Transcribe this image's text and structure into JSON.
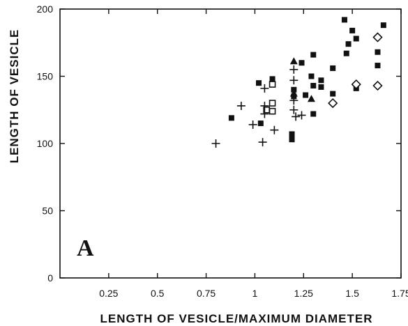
{
  "chart_data": {
    "type": "scatter",
    "title": "",
    "panel_label": "A",
    "xlabel": "LENGTH OF VESICLE/MAXIMUM DIAMETER",
    "ylabel": "LENGTH OF VESICLE",
    "xlim": [
      0,
      1.75
    ],
    "ylim": [
      0,
      200
    ],
    "xticks": [
      0.25,
      0.5,
      0.75,
      1,
      1.25,
      1.5,
      1.75
    ],
    "xtick_labels": [
      "0.25",
      "0.5",
      "0.75",
      "1",
      "1.25",
      "1.5",
      "1.75"
    ],
    "yticks": [
      0,
      50,
      100,
      150,
      200
    ],
    "ytick_labels": [
      "0",
      "50",
      "100",
      "150",
      "200"
    ],
    "grid": false,
    "series": [
      {
        "marker": "filled-square",
        "points": [
          [
            0.88,
            119
          ],
          [
            1.02,
            145
          ],
          [
            1.03,
            115
          ],
          [
            1.09,
            148
          ],
          [
            1.19,
            107
          ],
          [
            1.19,
            103
          ],
          [
            1.2,
            140
          ],
          [
            1.2,
            135
          ],
          [
            1.24,
            160
          ],
          [
            1.26,
            136
          ],
          [
            1.29,
            150
          ],
          [
            1.3,
            143
          ],
          [
            1.3,
            122
          ],
          [
            1.3,
            166
          ],
          [
            1.34,
            147
          ],
          [
            1.34,
            142
          ],
          [
            1.4,
            156
          ],
          [
            1.4,
            137
          ],
          [
            1.46,
            192
          ],
          [
            1.47,
            167
          ],
          [
            1.48,
            174
          ],
          [
            1.5,
            184
          ],
          [
            1.52,
            178
          ],
          [
            1.52,
            141
          ],
          [
            1.63,
            168
          ],
          [
            1.63,
            158
          ],
          [
            1.66,
            188
          ]
        ]
      },
      {
        "marker": "open-square",
        "points": [
          [
            1.09,
            144
          ],
          [
            1.09,
            130
          ],
          [
            1.09,
            124
          ],
          [
            1.06,
            125
          ]
        ]
      },
      {
        "marker": "open-diamond",
        "points": [
          [
            1.4,
            130
          ],
          [
            1.52,
            144
          ],
          [
            1.63,
            179
          ],
          [
            1.63,
            143
          ]
        ]
      },
      {
        "marker": "filled-triangle",
        "points": [
          [
            1.2,
            161
          ],
          [
            1.2,
            137
          ],
          [
            1.29,
            133
          ]
        ]
      },
      {
        "marker": "plus",
        "points": [
          [
            0.8,
            100
          ],
          [
            0.93,
            128
          ],
          [
            0.99,
            114
          ],
          [
            1.04,
            101
          ],
          [
            1.05,
            141
          ],
          [
            1.05,
            128
          ],
          [
            1.05,
            122
          ],
          [
            1.1,
            110
          ],
          [
            1.2,
            155
          ],
          [
            1.2,
            147
          ],
          [
            1.2,
            132
          ],
          [
            1.2,
            125
          ],
          [
            1.21,
            120
          ],
          [
            1.24,
            121
          ]
        ]
      }
    ]
  }
}
